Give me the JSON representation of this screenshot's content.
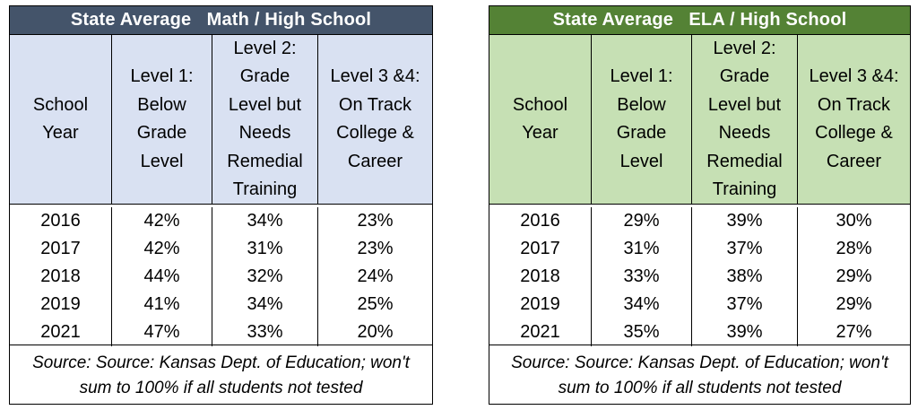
{
  "tables": [
    {
      "title": "State Average   Math / High School",
      "headers": [
        "School\nYear",
        "Level 1:\nBelow\nGrade\nLevel",
        "Level 2:\nGrade\nLevel but\nNeeds\nRemedial\nTraining",
        "Level 3 &4:\nOn Track\nCollege &\nCareer"
      ],
      "rows": [
        [
          "2016",
          "42%",
          "34%",
          "23%"
        ],
        [
          "2017",
          "42%",
          "31%",
          "23%"
        ],
        [
          "2018",
          "44%",
          "32%",
          "24%"
        ],
        [
          "2019",
          "41%",
          "34%",
          "25%"
        ],
        [
          "2021",
          "47%",
          "33%",
          "20%"
        ]
      ],
      "source": "Source: Source: Kansas Dept. of Education; won't\nsum to 100% if all students not tested",
      "header_color": "#44546a",
      "band_color": "#d9e1f2"
    },
    {
      "title": "State Average   ELA / High School",
      "headers": [
        "School\nYear",
        "Level 1:\nBelow\nGrade\nLevel",
        "Level 2:\nGrade\nLevel but\nNeeds\nRemedial\nTraining",
        "Level 3 &4:\nOn Track\nCollege &\nCareer"
      ],
      "rows": [
        [
          "2016",
          "29%",
          "39%",
          "30%"
        ],
        [
          "2017",
          "31%",
          "37%",
          "28%"
        ],
        [
          "2018",
          "33%",
          "38%",
          "29%"
        ],
        [
          "2019",
          "34%",
          "37%",
          "29%"
        ],
        [
          "2021",
          "35%",
          "39%",
          "27%"
        ]
      ],
      "source": "Source: Source: Kansas Dept. of Education; won't\nsum to 100% if all students not tested",
      "header_color": "#548235",
      "band_color": "#c6e0b4"
    }
  ]
}
